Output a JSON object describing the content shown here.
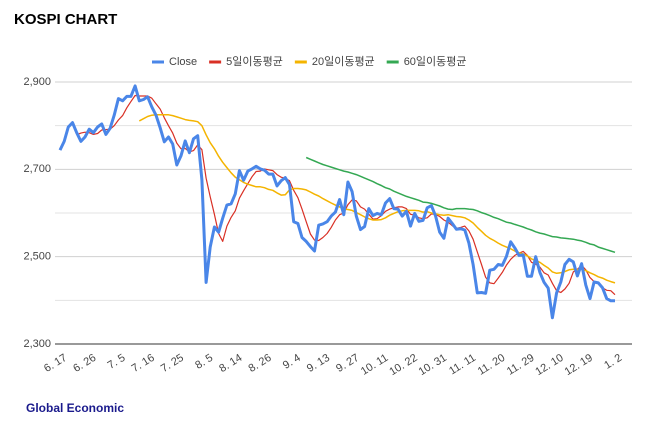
{
  "chart_data": {
    "type": "line",
    "title": "KOSPI CHART",
    "source": "Global Economic",
    "categories": [
      "6. 17",
      null,
      null,
      null,
      null,
      null,
      null,
      "6. 26",
      null,
      null,
      null,
      null,
      null,
      null,
      "7. 5",
      null,
      null,
      null,
      null,
      null,
      null,
      "7. 16",
      null,
      null,
      null,
      null,
      null,
      null,
      "7. 25",
      null,
      null,
      null,
      null,
      null,
      null,
      "8. 5",
      null,
      null,
      null,
      null,
      null,
      null,
      "8. 14",
      null,
      null,
      null,
      null,
      null,
      null,
      "8. 26",
      null,
      null,
      null,
      null,
      null,
      null,
      "9. 4",
      null,
      null,
      null,
      null,
      null,
      null,
      "9. 13",
      null,
      null,
      null,
      null,
      null,
      null,
      "9. 27",
      null,
      null,
      null,
      null,
      null,
      null,
      "10. 11",
      null,
      null,
      null,
      null,
      null,
      null,
      "10. 22",
      null,
      null,
      null,
      null,
      null,
      null,
      "10. 31",
      null,
      null,
      null,
      null,
      null,
      null,
      "11. 11",
      null,
      null,
      null,
      null,
      null,
      null,
      "11. 20",
      null,
      null,
      null,
      null,
      null,
      null,
      "11. 29",
      null,
      null,
      null,
      null,
      null,
      null,
      "12. 10",
      null,
      null,
      null,
      null,
      null,
      null,
      "12. 19",
      null,
      null,
      null,
      null,
      null,
      null,
      "1. 2"
    ],
    "series": [
      {
        "name": "Close",
        "color": "#4a86e8",
        "width": 3,
        "values": [
          2744,
          2764,
          2797,
          2807,
          2784,
          2764,
          2774,
          2792,
          2784,
          2797,
          2804,
          2780,
          2794,
          2824,
          2862,
          2857,
          2867,
          2867,
          2891,
          2857,
          2860,
          2866,
          2843,
          2824,
          2795,
          2763,
          2774,
          2758,
          2710,
          2731,
          2765,
          2738,
          2770,
          2777,
          2676,
          2441,
          2522,
          2568,
          2556,
          2588,
          2618,
          2621,
          2644,
          2697,
          2675,
          2696,
          2701,
          2707,
          2701,
          2698,
          2689,
          2689,
          2662,
          2674,
          2681,
          2665,
          2580,
          2576,
          2544,
          2535,
          2523,
          2513,
          2572,
          2575,
          2580,
          2593,
          2602,
          2631,
          2596,
          2671,
          2649,
          2593,
          2562,
          2569,
          2610,
          2594,
          2599,
          2596,
          2623,
          2633,
          2610,
          2609,
          2593,
          2604,
          2570,
          2599,
          2581,
          2583,
          2612,
          2617,
          2593,
          2556,
          2542,
          2588,
          2576,
          2563,
          2564,
          2561,
          2531,
          2482,
          2417,
          2418,
          2416,
          2469,
          2471,
          2482,
          2480,
          2501,
          2534,
          2520,
          2503,
          2504,
          2455,
          2455,
          2500,
          2464,
          2441,
          2428,
          2360,
          2417,
          2442,
          2482,
          2494,
          2488,
          2456,
          2484,
          2435,
          2404,
          2442,
          2440,
          2429,
          2404,
          2399,
          2399
        ]
      },
      {
        "name": "5일이동평균",
        "color": "#d93025",
        "width": 1.2,
        "values": [
          null,
          null,
          null,
          null,
          2779,
          2783,
          2785,
          2784,
          2780,
          2782,
          2790,
          2791,
          2792,
          2800,
          2813,
          2823,
          2841,
          2855,
          2869,
          2868,
          2868,
          2868,
          2863,
          2850,
          2838,
          2818,
          2800,
          2783,
          2760,
          2747,
          2748,
          2740,
          2743,
          2756,
          2745,
          2680,
          2637,
          2597,
          2553,
          2535,
          2570,
          2590,
          2605,
          2634,
          2651,
          2667,
          2683,
          2695,
          2696,
          2701,
          2699,
          2697,
          2688,
          2682,
          2679,
          2674,
          2652,
          2635,
          2609,
          2580,
          2552,
          2538,
          2537,
          2544,
          2553,
          2567,
          2584,
          2596,
          2600,
          2619,
          2630,
          2628,
          2614,
          2609,
          2597,
          2586,
          2587,
          2594,
          2604,
          2609,
          2612,
          2614,
          2614,
          2610,
          2597,
          2595,
          2589,
          2587,
          2589,
          2598,
          2597,
          2592,
          2584,
          2579,
          2571,
          2565,
          2567,
          2570,
          2559,
          2540,
          2511,
          2482,
          2453,
          2440,
          2438,
          2451,
          2464,
          2481,
          2494,
          2503,
          2508,
          2512,
          2503,
          2487,
          2483,
          2476,
          2463,
          2458,
          2439,
          2422,
          2418,
          2426,
          2439,
          2465,
          2471,
          2480,
          2470,
          2452,
          2443,
          2440,
          2429,
          2423,
          2422,
          2413
        ]
      },
      {
        "name": "20일이동평균",
        "color": "#f4b400",
        "width": 1.5,
        "values": [
          null,
          null,
          null,
          null,
          null,
          null,
          null,
          null,
          null,
          null,
          null,
          null,
          null,
          null,
          null,
          null,
          null,
          null,
          null,
          2811,
          2816,
          2821,
          2824,
          2825,
          2825,
          2825,
          2825,
          2823,
          2820,
          2817,
          2814,
          2812,
          2811,
          2809,
          2800,
          2779,
          2761,
          2747,
          2730,
          2716,
          2704,
          2692,
          2682,
          2676,
          2670,
          2666,
          2663,
          2660,
          2660,
          2658,
          2654,
          2652,
          2646,
          2641,
          2642,
          2653,
          2656,
          2656,
          2655,
          2653,
          2648,
          2643,
          2639,
          2633,
          2628,
          2623,
          2618,
          2614,
          2609,
          2608,
          2606,
          2601,
          2596,
          2591,
          2587,
          2584,
          2584,
          2585,
          2589,
          2595,
          2599,
          2603,
          2605,
          2606,
          2606,
          2606,
          2605,
          2602,
          2603,
          2600,
          2598,
          2596,
          2595,
          2596,
          2594,
          2592,
          2591,
          2589,
          2584,
          2577,
          2567,
          2558,
          2549,
          2542,
          2537,
          2531,
          2526,
          2522,
          2518,
          2513,
          2509,
          2506,
          2502,
          2495,
          2491,
          2487,
          2480,
          2474,
          2465,
          2462,
          2463,
          2466,
          2470,
          2471,
          2470,
          2471,
          2468,
          2463,
          2459,
          2454,
          2451,
          2446,
          2443,
          2440
        ]
      },
      {
        "name": "60일이동평균",
        "color": "#34a853",
        "width": 1.5,
        "values": [
          null,
          null,
          null,
          null,
          null,
          null,
          null,
          null,
          null,
          null,
          null,
          null,
          null,
          null,
          null,
          null,
          null,
          null,
          null,
          null,
          null,
          null,
          null,
          null,
          null,
          null,
          null,
          null,
          null,
          null,
          null,
          null,
          null,
          null,
          null,
          null,
          null,
          null,
          null,
          null,
          null,
          null,
          null,
          null,
          null,
          null,
          null,
          null,
          null,
          null,
          null,
          null,
          null,
          null,
          null,
          null,
          null,
          null,
          null,
          2727,
          2723,
          2719,
          2715,
          2711,
          2708,
          2705,
          2702,
          2699,
          2696,
          2694,
          2691,
          2688,
          2684,
          2680,
          2676,
          2672,
          2667,
          2663,
          2658,
          2655,
          2650,
          2646,
          2642,
          2638,
          2635,
          2632,
          2629,
          2625,
          2624,
          2622,
          2619,
          2616,
          2612,
          2609,
          2608,
          2610,
          2610,
          2610,
          2609,
          2608,
          2605,
          2601,
          2598,
          2594,
          2590,
          2587,
          2583,
          2579,
          2577,
          2574,
          2571,
          2568,
          2564,
          2561,
          2557,
          2554,
          2552,
          2549,
          2546,
          2545,
          2543,
          2542,
          2541,
          2540,
          2538,
          2536,
          2533,
          2529,
          2527,
          2522,
          2519,
          2516,
          2513,
          2510
        ]
      }
    ],
    "ylim": [
      2300,
      2900
    ],
    "yticks": [
      {
        "value": 2300,
        "label": "2,300"
      },
      {
        "value": 2500,
        "label": "2,500"
      },
      {
        "value": 2700,
        "label": "2,700"
      },
      {
        "value": 2900,
        "label": "2,900"
      }
    ],
    "minor_grid": [
      2400,
      2600,
      2800
    ],
    "grid": true,
    "legend": "top"
  }
}
